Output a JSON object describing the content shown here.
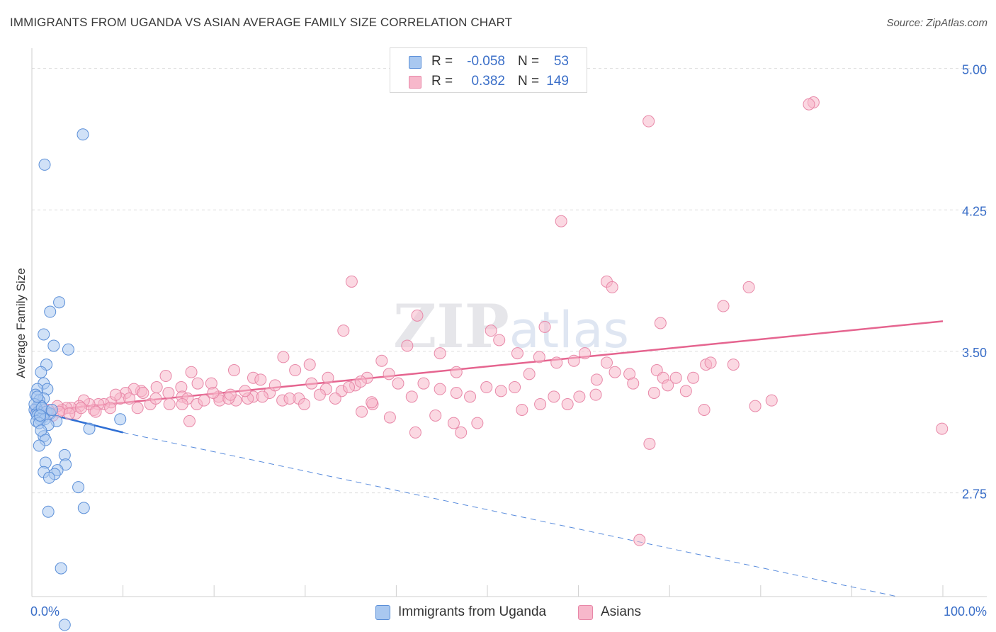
{
  "title": "IMMIGRANTS FROM UGANDA VS ASIAN AVERAGE FAMILY SIZE CORRELATION CHART",
  "source": "Source: ZipAtlas.com",
  "watermark": "ZIPatlas",
  "colors": {
    "uganda_fill": "#a9c8f0",
    "uganda_stroke": "#5b8fd8",
    "uganda_line": "#2f6fd4",
    "asian_fill": "#f7b8cb",
    "asian_stroke": "#e888a8",
    "asian_line": "#e5648f",
    "axis_text": "#3b6fc8",
    "grid": "#dddddd"
  },
  "legend_top": [
    {
      "r_label": "R =",
      "r_value": "-0.058",
      "n_label": "N =",
      "n_value": "53"
    },
    {
      "r_label": "R =",
      "r_value": "0.382",
      "n_label": "N =",
      "n_value": "149"
    }
  ],
  "legend_bottom": [
    "Immigrants from Uganda",
    "Asians"
  ],
  "chart_data": {
    "type": "scatter",
    "title": "IMMIGRANTS FROM UGANDA VS ASIAN AVERAGE FAMILY SIZE CORRELATION CHART",
    "xlabel": "",
    "ylabel": "Average Family Size",
    "x_tick_labels": [
      "0.0%",
      "100.0%"
    ],
    "y_tick_labels": [
      "5.00",
      "4.25",
      "3.50",
      "2.75"
    ],
    "y_ticks": [
      5.0,
      4.25,
      3.5,
      2.75
    ],
    "xlim": [
      0,
      100
    ],
    "ylim": [
      2.2,
      5.1
    ],
    "grid": "horizontal dashed",
    "legend_placement": "top-center and bottom",
    "series": [
      {
        "name": "Immigrants from Uganda",
        "r": -0.058,
        "n": 53,
        "trend": {
          "x": [
            0,
            10
          ],
          "y": [
            3.19,
            3.07
          ],
          "extended": {
            "x": [
              10,
              95
            ],
            "y": [
              3.07,
              2.2
            ]
          }
        },
        "points": [
          [
            5.6,
            4.65
          ],
          [
            1.4,
            4.49
          ],
          [
            3.0,
            3.76
          ],
          [
            2.0,
            3.71
          ],
          [
            1.3,
            3.59
          ],
          [
            2.4,
            3.53
          ],
          [
            4.0,
            3.51
          ],
          [
            1.6,
            3.43
          ],
          [
            1.0,
            3.39
          ],
          [
            1.3,
            3.33
          ],
          [
            1.7,
            3.3
          ],
          [
            0.6,
            3.3
          ],
          [
            0.4,
            3.27
          ],
          [
            1.3,
            3.25
          ],
          [
            0.8,
            3.24
          ],
          [
            1.0,
            3.21
          ],
          [
            0.5,
            3.2
          ],
          [
            0.3,
            3.19
          ],
          [
            0.7,
            3.18
          ],
          [
            1.6,
            3.18
          ],
          [
            0.5,
            3.17
          ],
          [
            2.0,
            3.17
          ],
          [
            0.6,
            3.16
          ],
          [
            1.2,
            3.15
          ],
          [
            0.9,
            3.14
          ],
          [
            1.4,
            3.14
          ],
          [
            2.7,
            3.13
          ],
          [
            0.5,
            3.13
          ],
          [
            0.8,
            3.12
          ],
          [
            1.8,
            3.11
          ],
          [
            9.7,
            3.14
          ],
          [
            6.3,
            3.09
          ],
          [
            1.3,
            3.05
          ],
          [
            1.0,
            3.08
          ],
          [
            1.5,
            3.03
          ],
          [
            0.8,
            3.0
          ],
          [
            3.6,
            2.95
          ],
          [
            1.5,
            2.91
          ],
          [
            3.7,
            2.9
          ],
          [
            2.8,
            2.87
          ],
          [
            1.3,
            2.86
          ],
          [
            2.5,
            2.85
          ],
          [
            1.9,
            2.83
          ],
          [
            5.1,
            2.78
          ],
          [
            5.7,
            2.67
          ],
          [
            1.8,
            2.65
          ],
          [
            3.2,
            2.35
          ],
          [
            3.6,
            2.05
          ],
          [
            0.3,
            3.22
          ],
          [
            0.6,
            3.26
          ],
          [
            1.1,
            3.2
          ],
          [
            0.9,
            3.16
          ],
          [
            2.2,
            3.19
          ]
        ]
      },
      {
        "name": "Asians",
        "r": 0.382,
        "n": 149,
        "trend": {
          "x": [
            0,
            100
          ],
          "y": [
            3.18,
            3.66
          ]
        },
        "points": [
          [
            85.8,
            4.82
          ],
          [
            85.3,
            4.81
          ],
          [
            67.7,
            4.72
          ],
          [
            58.1,
            4.19
          ],
          [
            63.1,
            3.87
          ],
          [
            35.1,
            3.87
          ],
          [
            63.7,
            3.84
          ],
          [
            78.7,
            3.84
          ],
          [
            75.9,
            3.74
          ],
          [
            42.3,
            3.69
          ],
          [
            69.0,
            3.65
          ],
          [
            56.3,
            3.63
          ],
          [
            34.2,
            3.61
          ],
          [
            50.4,
            3.61
          ],
          [
            51.3,
            3.56
          ],
          [
            53.3,
            3.49
          ],
          [
            55.7,
            3.47
          ],
          [
            38.4,
            3.45
          ],
          [
            59.5,
            3.45
          ],
          [
            60.7,
            3.49
          ],
          [
            44.8,
            3.49
          ],
          [
            41.2,
            3.53
          ],
          [
            63.1,
            3.44
          ],
          [
            57.6,
            3.44
          ],
          [
            74.0,
            3.43
          ],
          [
            30.5,
            3.43
          ],
          [
            68.6,
            3.4
          ],
          [
            65.6,
            3.38
          ],
          [
            46.6,
            3.39
          ],
          [
            54.6,
            3.38
          ],
          [
            70.7,
            3.36
          ],
          [
            72.6,
            3.36
          ],
          [
            69.3,
            3.36
          ],
          [
            62.0,
            3.35
          ],
          [
            40.2,
            3.33
          ],
          [
            35.5,
            3.32
          ],
          [
            32.3,
            3.3
          ],
          [
            36.8,
            3.36
          ],
          [
            28.9,
            3.4
          ],
          [
            27.6,
            3.47
          ],
          [
            22.2,
            3.4
          ],
          [
            17.5,
            3.39
          ],
          [
            24.3,
            3.36
          ],
          [
            19.7,
            3.33
          ],
          [
            20.5,
            3.26
          ],
          [
            26.1,
            3.28
          ],
          [
            24.3,
            3.26
          ],
          [
            22.4,
            3.24
          ],
          [
            20.6,
            3.24
          ],
          [
            18.2,
            3.33
          ],
          [
            16.4,
            3.31
          ],
          [
            16.5,
            3.26
          ],
          [
            14.7,
            3.37
          ],
          [
            13.7,
            3.31
          ],
          [
            12.0,
            3.29
          ],
          [
            11.2,
            3.3
          ],
          [
            10.3,
            3.28
          ],
          [
            9.7,
            3.25
          ],
          [
            8.7,
            3.23
          ],
          [
            7.9,
            3.22
          ],
          [
            7.3,
            3.22
          ],
          [
            6.8,
            3.19
          ],
          [
            6.3,
            3.22
          ],
          [
            5.7,
            3.24
          ],
          [
            5.2,
            3.21
          ],
          [
            4.8,
            3.17
          ],
          [
            4.3,
            3.2
          ],
          [
            3.8,
            3.2
          ],
          [
            3.3,
            3.19
          ],
          [
            2.8,
            3.21
          ],
          [
            2.3,
            3.16
          ],
          [
            1.8,
            3.19
          ],
          [
            1.3,
            3.17
          ],
          [
            0.8,
            3.21
          ],
          [
            0.5,
            3.19
          ],
          [
            11.6,
            3.2
          ],
          [
            13.0,
            3.22
          ],
          [
            15.1,
            3.22
          ],
          [
            17.1,
            3.25
          ],
          [
            18.1,
            3.22
          ],
          [
            21.6,
            3.25
          ],
          [
            23.7,
            3.25
          ],
          [
            25.3,
            3.26
          ],
          [
            27.5,
            3.24
          ],
          [
            29.3,
            3.25
          ],
          [
            30.7,
            3.33
          ],
          [
            32.5,
            3.36
          ],
          [
            34.0,
            3.29
          ],
          [
            36.1,
            3.34
          ],
          [
            37.4,
            3.22
          ],
          [
            39.2,
            3.38
          ],
          [
            41.7,
            3.26
          ],
          [
            43.0,
            3.33
          ],
          [
            44.8,
            3.3
          ],
          [
            46.6,
            3.28
          ],
          [
            48.1,
            3.26
          ],
          [
            49.9,
            3.31
          ],
          [
            51.5,
            3.29
          ],
          [
            53.0,
            3.31
          ],
          [
            55.8,
            3.22
          ],
          [
            57.3,
            3.26
          ],
          [
            58.8,
            3.22
          ],
          [
            60.1,
            3.26
          ],
          [
            61.9,
            3.27
          ],
          [
            64.0,
            3.39
          ],
          [
            66.0,
            3.33
          ],
          [
            68.3,
            3.28
          ],
          [
            69.8,
            3.32
          ],
          [
            71.8,
            3.29
          ],
          [
            73.8,
            3.19
          ],
          [
            74.5,
            3.44
          ],
          [
            77.0,
            3.43
          ],
          [
            79.4,
            3.21
          ],
          [
            81.2,
            3.24
          ],
          [
            99.9,
            3.09
          ],
          [
            67.8,
            3.01
          ],
          [
            66.7,
            2.5
          ],
          [
            48.9,
            3.12
          ],
          [
            47.1,
            3.07
          ],
          [
            42.1,
            3.07
          ],
          [
            46.3,
            3.12
          ],
          [
            39.3,
            3.15
          ],
          [
            37.3,
            3.23
          ],
          [
            36.2,
            3.18
          ],
          [
            34.8,
            3.31
          ],
          [
            33.3,
            3.25
          ],
          [
            31.6,
            3.27
          ],
          [
            29.9,
            3.22
          ],
          [
            28.3,
            3.25
          ],
          [
            26.7,
            3.32
          ],
          [
            25.1,
            3.35
          ],
          [
            23.4,
            3.29
          ],
          [
            21.8,
            3.27
          ],
          [
            19.9,
            3.28
          ],
          [
            18.9,
            3.24
          ],
          [
            16.5,
            3.22
          ],
          [
            15.0,
            3.28
          ],
          [
            13.6,
            3.25
          ],
          [
            12.2,
            3.28
          ],
          [
            10.7,
            3.25
          ],
          [
            9.2,
            3.27
          ],
          [
            8.6,
            3.2
          ],
          [
            7.0,
            3.18
          ],
          [
            5.4,
            3.2
          ],
          [
            4.1,
            3.17
          ],
          [
            3.0,
            3.18
          ],
          [
            17.3,
            3.13
          ],
          [
            44.3,
            3.16
          ],
          [
            53.8,
            3.19
          ]
        ]
      }
    ]
  }
}
